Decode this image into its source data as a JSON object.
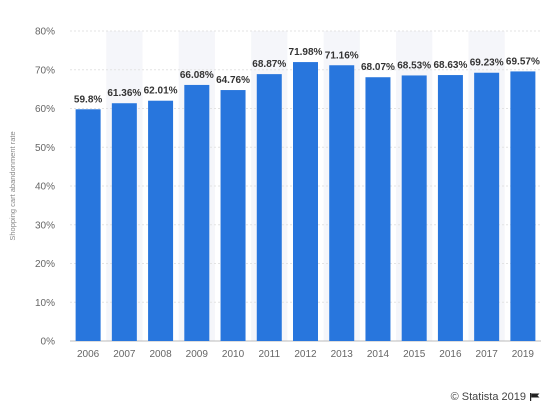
{
  "chart_data": {
    "type": "bar",
    "categories": [
      "2006",
      "2007",
      "2008",
      "2009",
      "2010",
      "2011",
      "2012",
      "2013",
      "2014",
      "2015",
      "2016",
      "2017",
      "2019"
    ],
    "values": [
      59.8,
      61.36,
      62.01,
      66.08,
      64.76,
      68.87,
      71.98,
      71.16,
      68.07,
      68.53,
      68.63,
      69.23,
      69.57
    ],
    "value_labels": [
      "59.8%",
      "61.36%",
      "62.01%",
      "66.08%",
      "64.76%",
      "68.87%",
      "71.98%",
      "71.16%",
      "68.07%",
      "68.53%",
      "68.63%",
      "69.23%",
      "69.57%"
    ],
    "ylabel": "Shopping cart abandonment rate",
    "xlabel": "",
    "ylim": [
      0,
      80
    ],
    "yticks": [
      0,
      10,
      20,
      30,
      40,
      50,
      60,
      70,
      80
    ],
    "ytick_labels": [
      "0%",
      "10%",
      "20%",
      "30%",
      "40%",
      "50%",
      "60%",
      "70%",
      "80%"
    ],
    "bar_color": "#2876dd",
    "grid": true,
    "alternating_column_bands": true
  },
  "credit": {
    "text": "© Statista 2019",
    "icon": "flag-icon"
  }
}
